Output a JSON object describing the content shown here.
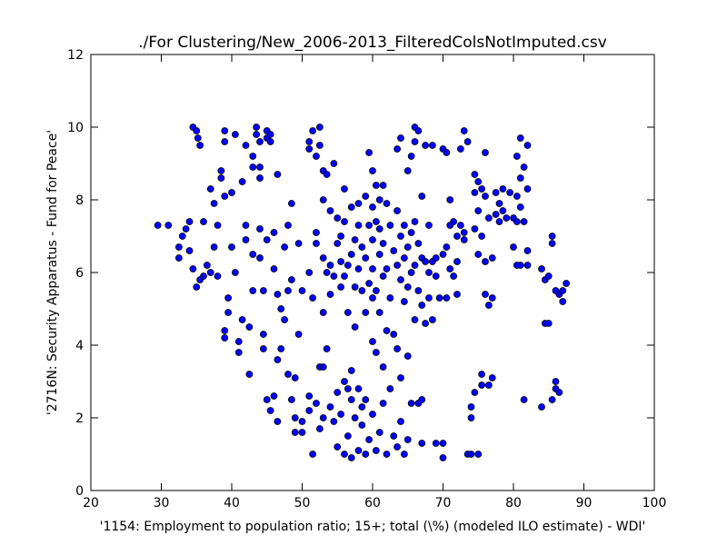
{
  "chart_data": {
    "type": "scatter",
    "title": "./For Clustering/New_2006-2013_FilteredColsNotImputed.csv",
    "xlabel": "'1154: Employment to population ratio; 15+; total (\\%)  (modeled ILO estimate) - WDI'",
    "ylabel": "'2716N: Security Apparatus - Fund for Peace'",
    "color": "#0000ff",
    "xlim": [
      20,
      100
    ],
    "ylim": [
      0,
      12
    ],
    "xticks": [
      20,
      30,
      40,
      50,
      60,
      70,
      80,
      90,
      100
    ],
    "yticks": [
      0,
      2,
      4,
      6,
      8,
      10,
      12
    ],
    "x": [
      29.5,
      31,
      32.5,
      32.5,
      33,
      33.5,
      34,
      34.5,
      35,
      35.2,
      35.5,
      34.5,
      34,
      35,
      35.5,
      36,
      36,
      36.5,
      37,
      37,
      37.5,
      37.5,
      38,
      38,
      38.5,
      38.5,
      39,
      39,
      39,
      39.5,
      39,
      39,
      39.5,
      40,
      40,
      40.5,
      40.5,
      41,
      41,
      41.5,
      41.5,
      42,
      42,
      42,
      42.5,
      42.5,
      43,
      43,
      43,
      43,
      43.5,
      43.5,
      44,
      44,
      44,
      44,
      44,
      44.5,
      44.5,
      44.5,
      45,
      45,
      45,
      45,
      45.5,
      45.5,
      45.5,
      46,
      46,
      46,
      46.5,
      46.5,
      46.5,
      46.5,
      47,
      47,
      47.5,
      47.5,
      48,
      48,
      48,
      48.5,
      48.5,
      48.5,
      49,
      49,
      49,
      49.5,
      49.5,
      50,
      50,
      50,
      51,
      51,
      51,
      51,
      51,
      51.5,
      51.5,
      51.5,
      52,
      52,
      52,
      52,
      52.5,
      52.5,
      52.5,
      52.5,
      53,
      53,
      53,
      53,
      53,
      53,
      53.5,
      53.5,
      53.5,
      54,
      54,
      54,
      54,
      54.5,
      54.5,
      54.5,
      55,
      55,
      55,
      55,
      55.5,
      55.5,
      55.5,
      55.5,
      56,
      56,
      56,
      56,
      56,
      56.5,
      56.5,
      56.5,
      56.5,
      57,
      57,
      57,
      57,
      57,
      57.5,
      57.5,
      57.5,
      57.5,
      58,
      58,
      58,
      58,
      58,
      58.5,
      58.5,
      58.5,
      58.5,
      59,
      59,
      59,
      59,
      59,
      59.5,
      59.5,
      59.5,
      59.5,
      60,
      60,
      60,
      60,
      60,
      60,
      60,
      60.5,
      60.5,
      60.5,
      60.5,
      60.5,
      61,
      61,
      61,
      61,
      61,
      61.5,
      61.5,
      61.5,
      61.5,
      61.5,
      62,
      62,
      62,
      62,
      62.5,
      62.5,
      62.5,
      63,
      63,
      63,
      63.5,
      63.5,
      63.5,
      63.5,
      63.5,
      64,
      64,
      64,
      64,
      64,
      64.5,
      64.5,
      64.5,
      64.5,
      65,
      65,
      65,
      65,
      65,
      65.5,
      65.5,
      65.5,
      65.5,
      66,
      66,
      66,
      66,
      66,
      66.5,
      66.5,
      66.5,
      66.5,
      67,
      67,
      67,
      67,
      67,
      67.5,
      67.5,
      67.5,
      68,
      68,
      68,
      68.5,
      68.5,
      68.5,
      69,
      69,
      69,
      69.5,
      70,
      70,
      70,
      70,
      70.5,
      70.5,
      70.5,
      71,
      71,
      71,
      71.5,
      71.5,
      72,
      72,
      72,
      72.5,
      72.5,
      73,
      73,
      73,
      73.5,
      73.5,
      74,
      74,
      74,
      74.5,
      74.5,
      74.5,
      74.5,
      75,
      75,
      75,
      75,
      75.5,
      75.5,
      75.5,
      75.5,
      76,
      76,
      76,
      76,
      76.5,
      76.5,
      76.5,
      77,
      77,
      77,
      77.5,
      77.5,
      78,
      78,
      78.5,
      78.5,
      79,
      79.5,
      80,
      80,
      80.5,
      80.5,
      80.5,
      80.5,
      81,
      81,
      81,
      81,
      81.5,
      81.5,
      81.5,
      82,
      82,
      82,
      82,
      84,
      84,
      84.5,
      84.5,
      85,
      85,
      85.5,
      85.5,
      85.5,
      86,
      86,
      86,
      86.5,
      86.5,
      87,
      87,
      87.5
    ],
    "values": [
      7.3,
      7.3,
      6.4,
      6.7,
      7,
      7.2,
      7.4,
      10,
      9.9,
      9.7,
      9.5,
      6.1,
      6.6,
      5.6,
      5.8,
      7.4,
      5.9,
      6.2,
      8.3,
      6,
      7.9,
      6.7,
      5.9,
      7.3,
      8.6,
      8.8,
      9.9,
      9.6,
      8.1,
      4.9,
      4.4,
      4.2,
      5.3,
      6.7,
      8.2,
      9.8,
      6,
      4.1,
      3.8,
      4.7,
      8.5,
      6.9,
      7.3,
      9.5,
      4.5,
      3.2,
      9.2,
      8.9,
      6.5,
      5.5,
      10,
      9.8,
      9.6,
      8.6,
      8.9,
      7.2,
      6.4,
      5.5,
      4.3,
      3.9,
      9.7,
      9.9,
      6.9,
      2.5,
      9.6,
      9.8,
      2.2,
      2.6,
      7.1,
      6.1,
      8.7,
      5.4,
      3.6,
      1.9,
      5,
      3.9,
      4.7,
      6.7,
      5.5,
      7.3,
      3.2,
      7.9,
      2.5,
      5.8,
      3.1,
      2,
      1.6,
      4.3,
      6.8,
      5.5,
      1.6,
      1.9,
      9.6,
      9.4,
      6,
      2.6,
      2.2,
      9.9,
      5.3,
      1,
      9.2,
      7.1,
      6.8,
      2.4,
      10,
      9.5,
      3.4,
      1.7,
      8.8,
      8,
      6.4,
      4.9,
      3.4,
      2,
      8.7,
      6,
      3.9,
      7.7,
      6.2,
      5.4,
      2.3,
      9,
      5.9,
      1.9,
      7.5,
      6.8,
      2.7,
      1.2,
      7,
      6.3,
      5.6,
      2.1,
      8.3,
      7.4,
      5.9,
      3,
      1,
      6.2,
      4.9,
      2.8,
      1.5,
      7.8,
      6.5,
      3.3,
      2.5,
      0.9,
      6.9,
      5.6,
      4.5,
      2,
      7.9,
      7.3,
      6.1,
      2.8,
      1.1,
      6.7,
      5.5,
      2.3,
      1.8,
      8.1,
      6.4,
      4.9,
      2.5,
      1,
      9.3,
      7.3,
      5.7,
      1.4,
      8.8,
      7.8,
      6.9,
      6.1,
      5.3,
      4.1,
      2.1,
      8.4,
      7.4,
      5.5,
      3.8,
      1.1,
      8,
      7.2,
      6.5,
      4.9,
      1.6,
      8.4,
      6.8,
      5.9,
      3.4,
      2.4,
      7.9,
      6.1,
      4.4,
      1,
      7.3,
      5.3,
      2.8,
      6.6,
      4.3,
      1.5,
      9.4,
      7.7,
      6.2,
      3.9,
      1.2,
      9.7,
      7,
      5.8,
      3.1,
      1.9,
      7.3,
      6.4,
      5.2,
      1,
      8.8,
      6.7,
      5.6,
      3.7,
      1.4,
      9.2,
      7.1,
      6,
      2.4,
      10,
      9.6,
      7.4,
      6.2,
      4.7,
      9.9,
      6.8,
      5.5,
      2.4,
      8.1,
      6.4,
      5.1,
      2.5,
      1.3,
      9.5,
      6.3,
      4.6,
      7.3,
      6,
      5.3,
      9.5,
      6.3,
      4.7,
      6.4,
      5.9,
      1.3,
      5.3,
      9.4,
      6.5,
      1.3,
      0.9,
      9.3,
      6.7,
      5.3,
      8,
      7.3,
      6.1,
      7.4,
      5.9,
      7,
      6.3,
      5.4,
      9.4,
      7.3,
      9.9,
      7.1,
      6.9,
      9.6,
      1,
      2.3,
      2,
      1,
      8.7,
      8.2,
      7.2,
      2.7,
      8.5,
      7.7,
      6.5,
      1,
      8.3,
      7,
      3.2,
      2.9,
      9.3,
      8.1,
      6.3,
      5.4,
      7.5,
      5.1,
      2.9,
      6.4,
      5.3,
      3.1,
      7.6,
      8.2,
      7.9,
      7.4,
      8.3,
      7.7,
      7.5,
      8.2,
      7.5,
      6.7,
      9.2,
      8.1,
      7.4,
      6.2,
      9.7,
      8.6,
      7.8,
      6.2,
      8.9,
      7.4,
      2.5,
      9.5,
      8.3,
      6.6,
      6.2,
      2.3,
      6.1,
      5.8,
      4.6,
      4.6,
      5.9,
      6.8,
      7,
      2.5,
      2.8,
      3,
      5.5,
      5.4,
      2.7,
      5.5,
      5.2,
      5.7
    ]
  }
}
